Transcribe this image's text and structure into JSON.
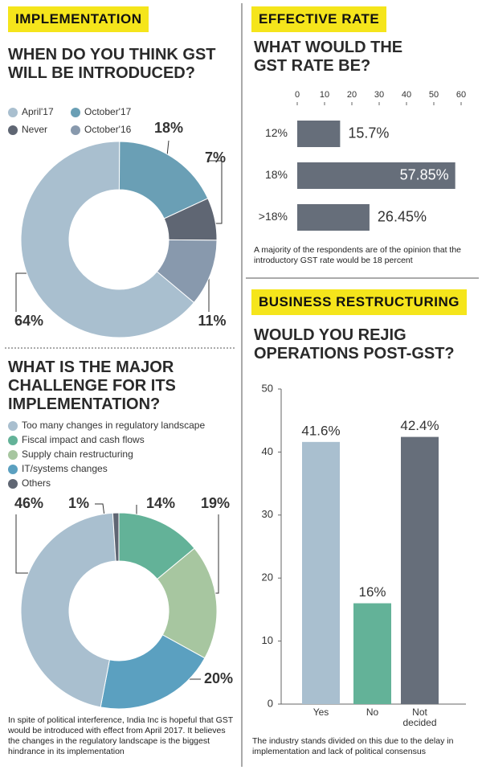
{
  "chart_data": [
    {
      "type": "donut",
      "section": "IMPLEMENTATION",
      "title": "WHEN DO YOU THINK GST\nWILL BE INTRODUCED?",
      "categories": [
        "April'17",
        "October'17",
        "Never",
        "October'16"
      ],
      "values": [
        64,
        18,
        7,
        11
      ],
      "value_labels": [
        "64%",
        "18%",
        "7%",
        "11%"
      ],
      "colors": [
        "#a9bfcf",
        "#6a9fb5",
        "#5f6673",
        "#8899ad"
      ],
      "legend": true
    },
    {
      "type": "donut",
      "title": "WHAT IS THE MAJOR\nCHALLENGE FOR ITS\nIMPLEMENTATION?",
      "categories": [
        "Too many changes in regulatory landscape",
        "Fiscal impact and cash flows",
        "Supply chain restructuring",
        "IT/systems changes",
        "Others"
      ],
      "values": [
        46,
        14,
        19,
        20,
        1
      ],
      "value_labels": [
        "46%",
        "14%",
        "19%",
        "20%",
        "1%"
      ],
      "colors": [
        "#a9bfcf",
        "#63b298",
        "#a7c6a0",
        "#5ba0c0",
        "#5f6673"
      ],
      "legend": true,
      "note": "In spite of political interference, India Inc is hopeful that GST would be introduced with effect from April 2017. It believes the changes in the regulatory landscape is the biggest hindrance in its implementation"
    },
    {
      "type": "hbar",
      "section": "EFFECTIVE RATE",
      "title": "WHAT WOULD THE\nGST RATE BE?",
      "categories": [
        "12%",
        "18%",
        ">18%"
      ],
      "values": [
        15.7,
        57.85,
        26.45
      ],
      "value_labels": [
        "15.7%",
        "57.85%",
        "26.45%"
      ],
      "color": "#666e7a",
      "xlim": [
        0,
        60
      ],
      "xticks": [
        0,
        10,
        20,
        30,
        40,
        50,
        60
      ],
      "note": "A majority of the respondents are of the opinion that the introductory GST rate would be 18 percent"
    },
    {
      "type": "vbar",
      "section": "BUSINESS RESTRUCTURING",
      "title": "WOULD YOU REJIG\nOPERATIONS POST-GST?",
      "categories": [
        "Yes",
        "No",
        "Not decided"
      ],
      "values": [
        41.6,
        16,
        42.4
      ],
      "value_labels": [
        "41.6%",
        "16%",
        "42.4%"
      ],
      "colors": [
        "#a9bfcf",
        "#63b298",
        "#666e7a"
      ],
      "ylim": [
        0,
        50
      ],
      "yticks": [
        0,
        10,
        20,
        30,
        40,
        50
      ],
      "note": "The industry stands divided on this due to the delay in implementation and lack of political consensus"
    }
  ]
}
